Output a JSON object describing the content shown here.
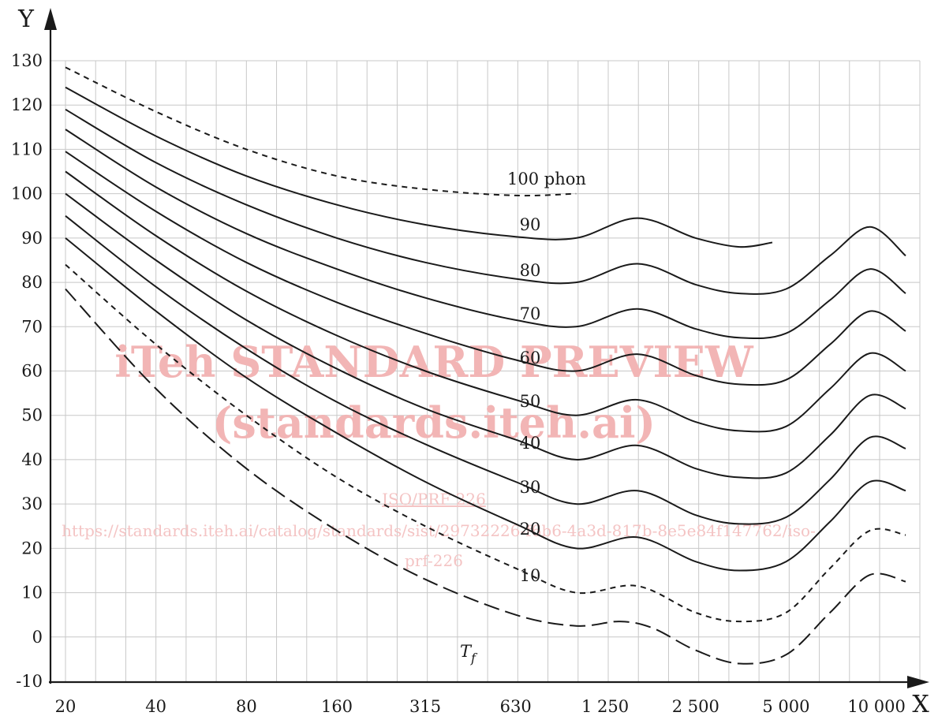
{
  "chart_data": {
    "type": "line",
    "xlabel": "X",
    "ylabel": "Y",
    "xscale": "log",
    "xlim": [
      20,
      12500
    ],
    "ylim": [
      -10,
      130
    ],
    "x_ticks": [
      "20",
      "40",
      "80",
      "160",
      "315",
      "630",
      "1 250",
      "2 500",
      "5 000",
      "10 000"
    ],
    "x_tick_values": [
      20,
      40,
      80,
      160,
      315,
      630,
      1250,
      2500,
      5000,
      10000
    ],
    "y_ticks": [
      "130",
      "120",
      "110",
      "100",
      "90",
      "80",
      "70",
      "60",
      "50",
      "40",
      "30",
      "20",
      "10",
      "0",
      "-10"
    ],
    "y_tick_values": [
      130,
      120,
      110,
      100,
      90,
      80,
      70,
      60,
      50,
      40,
      30,
      20,
      10,
      0,
      -10
    ],
    "grid": true,
    "series": [
      {
        "name": "100 phon",
        "style": "dashed",
        "label": "100 phon",
        "x": [
          20,
          40,
          80,
          160,
          315,
          630,
          1000
        ],
        "y": [
          128.5,
          118.5,
          110,
          104,
          101,
          99.6,
          100
        ]
      },
      {
        "name": "90",
        "style": "solid",
        "label": "90",
        "x": [
          20,
          40,
          80,
          160,
          315,
          630,
          1000,
          1600,
          2500,
          3500,
          4500
        ],
        "y": [
          124,
          113,
          104,
          97.5,
          93,
          90.3,
          90,
          94.5,
          90,
          88,
          89
        ]
      },
      {
        "name": "80",
        "style": "solid",
        "label": "80",
        "x": [
          20,
          40,
          80,
          160,
          315,
          630,
          1000,
          1600,
          2500,
          3500,
          5000,
          7000,
          9500,
          12500
        ],
        "y": [
          119,
          107,
          97.5,
          90,
          84.5,
          80.8,
          80,
          84.2,
          79.5,
          77.5,
          78.5,
          86,
          92.5,
          86
        ]
      },
      {
        "name": "70",
        "style": "solid",
        "label": "70",
        "x": [
          20,
          40,
          80,
          160,
          315,
          630,
          1000,
          1600,
          2500,
          3500,
          5000,
          7000,
          9500,
          12500
        ],
        "y": [
          114.5,
          101.5,
          91,
          83,
          76.5,
          71.5,
          70,
          74,
          69.5,
          67.5,
          68.5,
          76,
          83,
          77.5
        ]
      },
      {
        "name": "60",
        "style": "solid",
        "label": "60",
        "x": [
          20,
          40,
          80,
          160,
          315,
          630,
          1000,
          1600,
          2500,
          3500,
          5000,
          7000,
          9500,
          12500
        ],
        "y": [
          109.5,
          96,
          84.5,
          75.5,
          68.5,
          62.5,
          60,
          63.8,
          59,
          57,
          58,
          66,
          73.5,
          69
        ]
      },
      {
        "name": "50",
        "style": "solid",
        "label": "50",
        "x": [
          20,
          40,
          80,
          160,
          315,
          630,
          1000,
          1600,
          2500,
          3500,
          5000,
          7000,
          9500,
          12500
        ],
        "y": [
          105,
          90.5,
          78,
          68,
          60,
          53.5,
          50,
          53.5,
          48.5,
          46.5,
          47.5,
          56,
          64,
          60
        ]
      },
      {
        "name": "40",
        "style": "solid",
        "label": "40",
        "x": [
          20,
          40,
          80,
          160,
          315,
          630,
          1000,
          1600,
          2500,
          3500,
          5000,
          7000,
          9500,
          12500
        ],
        "y": [
          100,
          85,
          71.5,
          60.5,
          51.5,
          44.5,
          40,
          43.2,
          38,
          36,
          37,
          45.5,
          54.5,
          51.5
        ]
      },
      {
        "name": "30",
        "style": "solid",
        "label": "30",
        "x": [
          20,
          40,
          80,
          160,
          315,
          630,
          1000,
          1600,
          2500,
          3500,
          5000,
          7000,
          9500,
          12500
        ],
        "y": [
          95,
          79,
          65,
          53,
          43.5,
          35,
          30,
          33,
          27.5,
          25.5,
          27,
          35.5,
          45,
          42.5
        ]
      },
      {
        "name": "20",
        "style": "solid",
        "label": "20",
        "x": [
          20,
          40,
          80,
          160,
          315,
          630,
          1000,
          1600,
          2500,
          3500,
          5000,
          7000,
          9500,
          12500
        ],
        "y": [
          90,
          73.5,
          58.5,
          46,
          35,
          25.5,
          20,
          22.5,
          17,
          15,
          17,
          26,
          35,
          33
        ]
      },
      {
        "name": "10",
        "style": "dashed",
        "label": "10",
        "x": [
          20,
          40,
          80,
          160,
          315,
          630,
          1000,
          1600,
          2500,
          3500,
          5000,
          7000,
          9500,
          12500
        ],
        "y": [
          84,
          66,
          50,
          36,
          25,
          15.5,
          10,
          11.5,
          5.5,
          3.5,
          5.5,
          15.5,
          24,
          23
        ]
      },
      {
        "name": "Tf",
        "style": "longdash",
        "label": "T",
        "label_sub": "f",
        "x": [
          20,
          40,
          80,
          160,
          315,
          630,
          1000,
          1400,
          1800,
          2500,
          3500,
          5000,
          7000,
          9500,
          12500
        ],
        "y": [
          78.5,
          56,
          38,
          24,
          13,
          5,
          2.5,
          3.5,
          2,
          -3,
          -6,
          -4,
          5.5,
          14,
          12.5
        ]
      }
    ]
  },
  "watermark": {
    "line1": "iTeh STANDARD PREVIEW",
    "line2": "(standards.iteh.ai)",
    "line3": "ISO/PRF 226",
    "line4": "https://standards.iteh.ai/catalog/standards/sist/29732226-f6b6-4a3d-817b-8e5e84f147762/iso-",
    "line5": "prf-226"
  }
}
